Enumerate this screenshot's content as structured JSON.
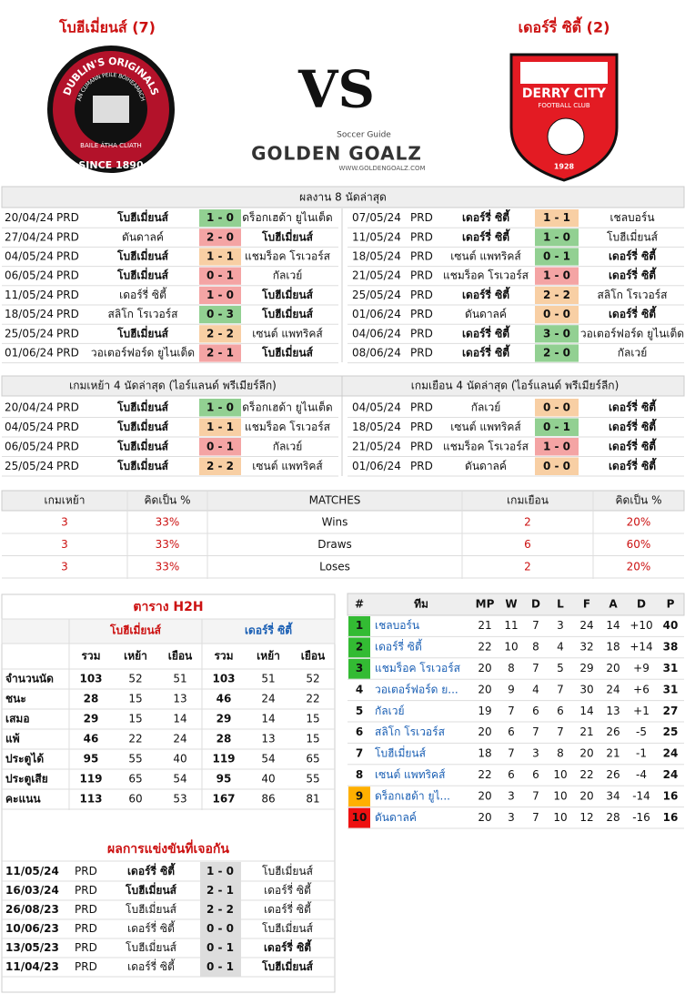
{
  "header": {
    "home": "โบฮีเมี่ยนส์ (7)",
    "away": "เดอร์รี่ ซิตี้ (2)",
    "vs": "VS",
    "brand_small": "Soccer Guide",
    "brand": "GOLDEN GOALZ",
    "brand_url": "WWW.GOLDENGOALZ.COM",
    "home_logo": [
      "DUBLIN'S ORIGINALS",
      "AN CUMANN PEILE BÓIHEAMACH",
      "BAILE ÁTHA CLIATH",
      "SINCE 1890"
    ],
    "away_logo": [
      "DERRY CITY",
      "FOOTBALL CLUB",
      "1928"
    ]
  },
  "last8": {
    "title": "ผลงาน 8 นัดล่าสุด",
    "home": [
      {
        "date": "20/04/24",
        "league": "PRD",
        "home": "โบฮีเมี่ยนส์",
        "score": "1 - 0",
        "away": "ดร็อกเฮด้า ยูไนเต็ด",
        "color": "#92d092"
      },
      {
        "date": "27/04/24",
        "league": "PRD",
        "home": "ดันดาลค์",
        "score": "2 - 0",
        "away": "โบฮีเมี่ยนส์",
        "color": "#f4a4a4"
      },
      {
        "date": "04/05/24",
        "league": "PRD",
        "home": "โบฮีเมี่ยนส์",
        "score": "1 - 1",
        "away": "แชมร็อค โรเวอร์ส",
        "color": "#f8cfa4"
      },
      {
        "date": "06/05/24",
        "league": "PRD",
        "home": "โบฮีเมี่ยนส์",
        "score": "0 - 1",
        "away": "กัลเวย์",
        "color": "#f4a4a4"
      },
      {
        "date": "11/05/24",
        "league": "PRD",
        "home": "เดอร์รี่ ซิตี้",
        "score": "1 - 0",
        "away": "โบฮีเมี่ยนส์",
        "color": "#f4a4a4"
      },
      {
        "date": "18/05/24",
        "league": "PRD",
        "home": "สลิโก โรเวอร์ส",
        "score": "0 - 3",
        "away": "โบฮีเมี่ยนส์",
        "color": "#92d092"
      },
      {
        "date": "25/05/24",
        "league": "PRD",
        "home": "โบฮีเมี่ยนส์",
        "score": "2 - 2",
        "away": "เซนต์ แพทริคส์",
        "color": "#f8cfa4"
      },
      {
        "date": "01/06/24",
        "league": "PRD",
        "home": "วอเตอร์ฟอร์ด ยูไนเต็ด",
        "score": "2 - 1",
        "away": "โบฮีเมี่ยนส์",
        "color": "#f4a4a4"
      }
    ],
    "away": [
      {
        "date": "07/05/24",
        "league": "PRD",
        "home": "เดอร์รี่ ซิตี้",
        "score": "1 - 1",
        "away": "เชลบอร์น",
        "color": "#f8cfa4"
      },
      {
        "date": "11/05/24",
        "league": "PRD",
        "home": "เดอร์รี่ ซิตี้",
        "score": "1 - 0",
        "away": "โบฮีเมี่ยนส์",
        "color": "#92d092"
      },
      {
        "date": "18/05/24",
        "league": "PRD",
        "home": "เซนต์ แพทริคส์",
        "score": "0 - 1",
        "away": "เดอร์รี่ ซิตี้",
        "color": "#92d092"
      },
      {
        "date": "21/05/24",
        "league": "PRD",
        "home": "แชมร็อค โรเวอร์ส",
        "score": "1 - 0",
        "away": "เดอร์รี่ ซิตี้",
        "color": "#f4a4a4"
      },
      {
        "date": "25/05/24",
        "league": "PRD",
        "home": "เดอร์รี่ ซิตี้",
        "score": "2 - 2",
        "away": "สลิโก โรเวอร์ส",
        "color": "#f8cfa4"
      },
      {
        "date": "01/06/24",
        "league": "PRD",
        "home": "ดันดาลค์",
        "score": "0 - 0",
        "away": "เดอร์รี่ ซิตี้",
        "color": "#f8cfa4"
      },
      {
        "date": "04/06/24",
        "league": "PRD",
        "home": "เดอร์รี่ ซิตี้",
        "score": "3 - 0",
        "away": "วอเตอร์ฟอร์ด ยูไนเต็ด",
        "color": "#92d092"
      },
      {
        "date": "08/06/24",
        "league": "PRD",
        "home": "เดอร์รี่ ซิตี้",
        "score": "2 - 0",
        "away": "กัลเวย์",
        "color": "#92d092"
      }
    ]
  },
  "last4": {
    "home_title": "เกมเหย้า 4 นัดล่าสุด (ไอร์แลนด์ พรีเมียร์ลีก)",
    "away_title": "เกมเยือน 4 นัดล่าสุด (ไอร์แลนด์ พรีเมียร์ลีก)",
    "home": [
      {
        "date": "20/04/24",
        "league": "PRD",
        "home": "โบฮีเมี่ยนส์",
        "score": "1 - 0",
        "away": "ดร็อกเฮด้า ยูไนเต็ด",
        "color": "#92d092"
      },
      {
        "date": "04/05/24",
        "league": "PRD",
        "home": "โบฮีเมี่ยนส์",
        "score": "1 - 1",
        "away": "แชมร็อค โรเวอร์ส",
        "color": "#f8cfa4"
      },
      {
        "date": "06/05/24",
        "league": "PRD",
        "home": "โบฮีเมี่ยนส์",
        "score": "0 - 1",
        "away": "กัลเวย์",
        "color": "#f4a4a4"
      },
      {
        "date": "25/05/24",
        "league": "PRD",
        "home": "โบฮีเมี่ยนส์",
        "score": "2 - 2",
        "away": "เซนต์ แพทริคส์",
        "color": "#f8cfa4"
      }
    ],
    "away": [
      {
        "date": "04/05/24",
        "league": "PRD",
        "home": "กัลเวย์",
        "score": "0 - 0",
        "away": "เดอร์รี่ ซิตี้",
        "color": "#f8cfa4"
      },
      {
        "date": "18/05/24",
        "league": "PRD",
        "home": "เซนต์ แพทริคส์",
        "score": "0 - 1",
        "away": "เดอร์รี่ ซิตี้",
        "color": "#92d092"
      },
      {
        "date": "21/05/24",
        "league": "PRD",
        "home": "แชมร็อค โรเวอร์ส",
        "score": "1 - 0",
        "away": "เดอร์รี่ ซิตี้",
        "color": "#f4a4a4"
      },
      {
        "date": "01/06/24",
        "league": "PRD",
        "home": "ดันดาลค์",
        "score": "0 - 0",
        "away": "เดอร์รี่ ซิตี้",
        "color": "#f8cfa4"
      }
    ]
  },
  "summary": {
    "headers": [
      "เกมเหย้า",
      "คิดเป็น %",
      "MATCHES",
      "เกมเยือน",
      "คิดเป็น %"
    ],
    "rows": [
      [
        "3",
        "33%",
        "Wins",
        "2",
        "20%"
      ],
      [
        "3",
        "33%",
        "Draws",
        "6",
        "60%"
      ],
      [
        "3",
        "33%",
        "Loses",
        "2",
        "20%"
      ]
    ]
  },
  "h2h": {
    "title": "ตาราง H2H",
    "teams": [
      "โบฮีเมี่ยนส์",
      "เดอร์รี่ ซิตี้"
    ],
    "subheaders": [
      "รวม",
      "เหย้า",
      "เยือน"
    ],
    "rows": [
      [
        "จำนวนนัด",
        "103",
        "52",
        "51",
        "103",
        "51",
        "52"
      ],
      [
        "ชนะ",
        "28",
        "15",
        "13",
        "46",
        "24",
        "22"
      ],
      [
        "เสมอ",
        "29",
        "15",
        "14",
        "29",
        "14",
        "15"
      ],
      [
        "แพ้",
        "46",
        "22",
        "24",
        "28",
        "13",
        "15"
      ],
      [
        "ประตูได้",
        "95",
        "55",
        "40",
        "119",
        "54",
        "65"
      ],
      [
        "ประตูเสีย",
        "119",
        "65",
        "54",
        "95",
        "40",
        "55"
      ],
      [
        "คะแนน",
        "113",
        "60",
        "53",
        "167",
        "86",
        "81"
      ]
    ]
  },
  "meetings": {
    "title": "ผลการแข่งขันที่เจอกัน",
    "rows": [
      {
        "date": "11/05/24",
        "league": "PRD",
        "home": "เดอร์รี่ ซิตี้",
        "score": "1 - 0",
        "away": "โบฮีเมี่ยนส์"
      },
      {
        "date": "16/03/24",
        "league": "PRD",
        "home": "โบฮีเมี่ยนส์",
        "score": "2 - 1",
        "away": "เดอร์รี่ ซิตี้"
      },
      {
        "date": "26/08/23",
        "league": "PRD",
        "home": "โบฮีเมี่ยนส์",
        "score": "2 - 2",
        "away": "เดอร์รี่ ซิตี้"
      },
      {
        "date": "10/06/23",
        "league": "PRD",
        "home": "เดอร์รี่ ซิตี้",
        "score": "0 - 0",
        "away": "โบฮีเมี่ยนส์"
      },
      {
        "date": "13/05/23",
        "league": "PRD",
        "home": "โบฮีเมี่ยนส์",
        "score": "0 - 1",
        "away": "เดอร์รี่ ซิตี้"
      },
      {
        "date": "11/04/23",
        "league": "PRD",
        "home": "เดอร์รี่ ซิตี้",
        "score": "0 - 1",
        "away": "โบฮีเมี่ยนส์"
      }
    ]
  },
  "standings": {
    "headers": [
      "#",
      "ทีม",
      "MP",
      "W",
      "D",
      "L",
      "F",
      "A",
      "D",
      "P"
    ],
    "rows": [
      {
        "color": "#33bb33",
        "cells": [
          "1",
          "เชลบอร์น",
          "21",
          "11",
          "7",
          "3",
          "24",
          "14",
          "+10",
          "40"
        ]
      },
      {
        "color": "#33bb33",
        "cells": [
          "2",
          "เดอร์รี่ ซิตี้",
          "22",
          "10",
          "8",
          "4",
          "32",
          "18",
          "+14",
          "38"
        ]
      },
      {
        "color": "#33bb33",
        "cells": [
          "3",
          "แชมร็อค โรเวอร์ส",
          "20",
          "8",
          "7",
          "5",
          "29",
          "20",
          "+9",
          "31"
        ]
      },
      {
        "color": null,
        "cells": [
          "4",
          "วอเตอร์ฟอร์ด ย...",
          "20",
          "9",
          "4",
          "7",
          "30",
          "24",
          "+6",
          "31"
        ]
      },
      {
        "color": null,
        "cells": [
          "5",
          "กัลเวย์",
          "19",
          "7",
          "6",
          "6",
          "14",
          "13",
          "+1",
          "27"
        ]
      },
      {
        "color": null,
        "cells": [
          "6",
          "สลิโก โรเวอร์ส",
          "20",
          "6",
          "7",
          "7",
          "21",
          "26",
          "-5",
          "25"
        ]
      },
      {
        "color": null,
        "cells": [
          "7",
          "โบฮีเมี่ยนส์",
          "18",
          "7",
          "3",
          "8",
          "20",
          "21",
          "-1",
          "24"
        ]
      },
      {
        "color": null,
        "cells": [
          "8",
          "เซนต์ แพทริคส์",
          "22",
          "6",
          "6",
          "10",
          "22",
          "26",
          "-4",
          "24"
        ]
      },
      {
        "color": "#ffb000",
        "cells": [
          "9",
          "ดร็อกเฮด้า ยูไ...",
          "20",
          "3",
          "7",
          "10",
          "20",
          "34",
          "-14",
          "16"
        ]
      },
      {
        "color": "#ee1111",
        "cells": [
          "10",
          "ดันดาลค์",
          "20",
          "3",
          "7",
          "10",
          "12",
          "28",
          "-16",
          "16"
        ]
      }
    ]
  }
}
